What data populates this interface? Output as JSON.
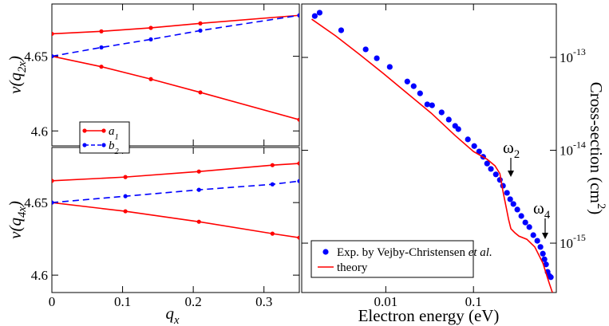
{
  "chart_data": [
    {
      "type": "line",
      "ylabel": [
        "v(q",
        "2x",
        ")"
      ],
      "xlim": [
        0,
        0.35
      ],
      "ylim": [
        4.59,
        4.685
      ],
      "xticks": [
        0,
        0.1,
        0.2,
        0.3
      ],
      "yticks": [
        4.6,
        4.65
      ],
      "series": [
        {
          "name": [
            "a",
            "1"
          ],
          "color": "#ff0000",
          "dash": false,
          "x": [
            0,
            0.07,
            0.14,
            0.21,
            0.35
          ],
          "values": [
            4.665,
            4.6667,
            4.669,
            4.672,
            4.6774
          ]
        },
        {
          "color": "#ff0000",
          "dash": false,
          "x": [
            0,
            0.07,
            0.14,
            0.21,
            0.35
          ],
          "values": [
            4.65,
            4.643,
            4.6347,
            4.6258,
            4.6075
          ]
        },
        {
          "name": [
            "b",
            "2"
          ],
          "color": "#0000ff",
          "dash": true,
          "x": [
            0,
            0.07,
            0.14,
            0.21,
            0.35
          ],
          "values": [
            4.65,
            4.6559,
            4.6613,
            4.6672,
            4.6774
          ]
        }
      ]
    },
    {
      "type": "line",
      "ylabel": [
        "v(q",
        "4x",
        ")"
      ],
      "xlabel": [
        "q",
        "x"
      ],
      "xlim": [
        0,
        0.35
      ],
      "ylim": [
        4.588,
        4.688
      ],
      "xticks": [
        0,
        0.1,
        0.2,
        0.3
      ],
      "yticks": [
        4.6,
        4.65
      ],
      "series": [
        {
          "color": "#ff0000",
          "dash": false,
          "x": [
            0,
            0.104,
            0.208,
            0.312,
            0.35
          ],
          "values": [
            4.665,
            4.6676,
            4.6714,
            4.6758,
            4.677
          ]
        },
        {
          "color": "#ff0000",
          "dash": false,
          "x": [
            0,
            0.104,
            0.208,
            0.312,
            0.35
          ],
          "values": [
            4.65,
            4.644,
            4.6368,
            4.6286,
            4.6258
          ]
        },
        {
          "color": "#0000ff",
          "dash": true,
          "x": [
            0,
            0.104,
            0.208,
            0.312,
            0.35
          ],
          "values": [
            4.65,
            4.6544,
            4.6588,
            4.6626,
            4.6648
          ]
        }
      ]
    },
    {
      "type": "scatter",
      "xlabel": "Electron energy (eV)",
      "ylabel": [
        "Cross-section (cm",
        "2",
        ")"
      ],
      "xlog": true,
      "ylog": true,
      "xlim": [
        0.0011,
        0.88
      ],
      "ylim": [
        2.94e-16,
        3.76e-13
      ],
      "xticks": [
        0.01,
        0.1
      ],
      "yticks": [
        {
          "value": 1e-13,
          "label": [
            "10",
            "-13"
          ]
        },
        {
          "value": 1e-14,
          "label": [
            "10",
            "-14"
          ]
        },
        {
          "value": 1e-15,
          "label": [
            "10",
            "-15"
          ]
        }
      ],
      "annotations": [
        [
          "ω",
          "2"
        ],
        [
          "ω",
          "4"
        ]
      ],
      "series": [
        {
          "name": [
            "Exp. by Vejby-Christensen ",
            "et al."
          ],
          "color": "#0000ff",
          "style": "markers",
          "x": [
            0.00155,
            0.00176,
            0.0031,
            0.0059,
            0.0079,
            0.0111,
            0.0176,
            0.0208,
            0.0246,
            0.0297,
            0.0337,
            0.0433,
            0.0523,
            0.0618,
            0.0672,
            0.0863,
            0.102,
            0.116,
            0.129,
            0.143,
            0.158,
            0.18,
            0.2,
            0.217,
            0.241,
            0.262,
            0.285,
            0.316,
            0.351,
            0.39,
            0.433,
            0.481,
            0.534,
            0.58,
            0.618,
            0.644,
            0.672,
            0.7,
            0.731,
            0.762
          ],
          "values": [
            2.79e-13,
            3.03e-13,
            1.96e-13,
            1.22e-13,
            9.8e-14,
            7.9e-14,
            5.5e-14,
            4.9e-14,
            4.1e-14,
            3.12e-14,
            3.05e-14,
            2.56e-14,
            2.14e-14,
            1.83e-14,
            1.69e-14,
            1.31e-14,
            1.11e-14,
            9.7e-15,
            8.5e-15,
            7.2e-15,
            6.3e-15,
            5.5e-15,
            4.8e-15,
            4.15e-15,
            3.48e-15,
            2.97e-15,
            2.64e-15,
            2.3e-15,
            1.96e-15,
            1.67e-15,
            1.49e-15,
            1.22e-15,
            1.06e-15,
            9.1e-16,
            7.7e-16,
            6.7e-16,
            5.9e-16,
            4.9e-16,
            4.45e-16,
            4.3e-16
          ]
        },
        {
          "name": [
            "theory"
          ],
          "color": "#ff0000",
          "style": "line",
          "x": [
            0.00143,
            0.00267,
            0.005,
            0.0094,
            0.0176,
            0.033,
            0.0618,
            0.1,
            0.143,
            0.176,
            0.2,
            0.217,
            0.236,
            0.251,
            0.267,
            0.297,
            0.33,
            0.406,
            0.5,
            0.618,
            0.731,
            0.794
          ],
          "values": [
            2.58e-13,
            1.71e-13,
            1.08e-13,
            6.7e-14,
            4.1e-14,
            2.51e-14,
            1.44e-14,
            9.7e-15,
            8e-15,
            6.8e-15,
            5.6e-15,
            3.6e-15,
            2.43e-15,
            1.81e-15,
            1.43e-15,
            1.29e-15,
            1.19e-15,
            1.1e-15,
            9.1e-16,
            6.1e-16,
            3.7e-16,
            2.94e-16
          ]
        }
      ]
    }
  ]
}
